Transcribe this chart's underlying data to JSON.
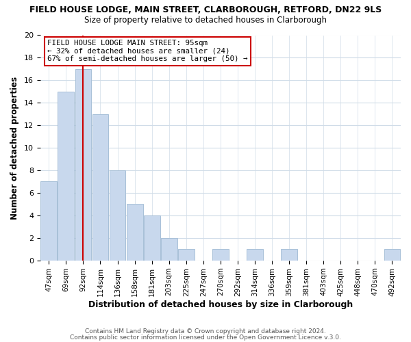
{
  "title1": "FIELD HOUSE LODGE, MAIN STREET, CLARBOROUGH, RETFORD, DN22 9LS",
  "title2": "Size of property relative to detached houses in Clarborough",
  "xlabel": "Distribution of detached houses by size in Clarborough",
  "ylabel": "Number of detached properties",
  "bar_color": "#c8d8ed",
  "bar_edge_color": "#a8c0d8",
  "categories": [
    "47sqm",
    "69sqm",
    "92sqm",
    "114sqm",
    "136sqm",
    "158sqm",
    "181sqm",
    "203sqm",
    "225sqm",
    "247sqm",
    "270sqm",
    "292sqm",
    "314sqm",
    "336sqm",
    "359sqm",
    "381sqm",
    "403sqm",
    "425sqm",
    "448sqm",
    "470sqm",
    "492sqm"
  ],
  "values": [
    7,
    15,
    17,
    13,
    8,
    5,
    4,
    2,
    1,
    0,
    1,
    0,
    1,
    0,
    1,
    0,
    0,
    0,
    0,
    0,
    1
  ],
  "ylim": [
    0,
    20
  ],
  "yticks": [
    0,
    2,
    4,
    6,
    8,
    10,
    12,
    14,
    16,
    18,
    20
  ],
  "vline_x": 2,
  "vline_color": "#cc0000",
  "annotation_box_text": "FIELD HOUSE LODGE MAIN STREET: 95sqm\n← 32% of detached houses are smaller (24)\n67% of semi-detached houses are larger (50) →",
  "footer1": "Contains HM Land Registry data © Crown copyright and database right 2024.",
  "footer2": "Contains public sector information licensed under the Open Government Licence v.3.0.",
  "grid_color": "#d0dce8",
  "background_color": "#ffffff"
}
